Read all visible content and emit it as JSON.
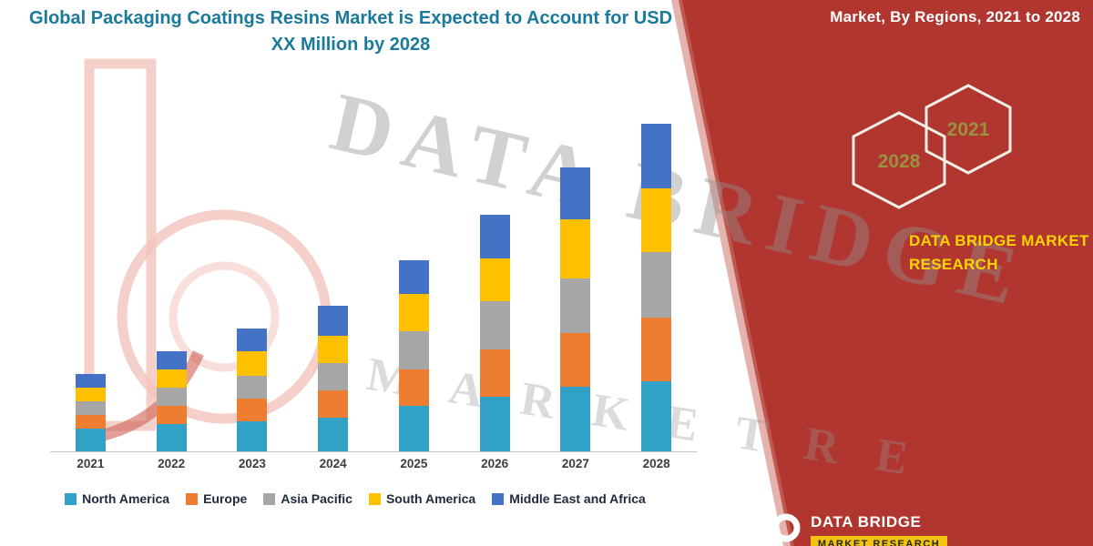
{
  "header": {
    "title": "Global Packaging Coatings Resins Market is Expected to Account for USD XX Million by 2028",
    "right_caption": "Market, By Regions, 2021 to 2028"
  },
  "side_panel": {
    "badge_back": "2028",
    "badge_front": "2021",
    "brand_line1": "DATA BRIDGE MARKET",
    "brand_line2": "RESEARCH"
  },
  "watermark": {
    "line1": "DATA BRIDGE",
    "line2": "MARKETRE"
  },
  "footer_logo": {
    "name": "DATA BRIDGE",
    "banner": "MARKET RESEARCH"
  },
  "colors": {
    "panel_red": "#B0362F",
    "title_teal": "#1A7A9C",
    "brand_yellow": "#FFD400",
    "hex_year_olive": "#99924A"
  },
  "chart_data": {
    "type": "bar",
    "stacked": true,
    "title": "Global Packaging Coatings Resins Market is Expected to Account for USD XX Million by 2028",
    "xlabel": "",
    "ylabel": "",
    "y_axis_shown": false,
    "grid": false,
    "legend_position": "bottom",
    "values_estimated_from_pixels": true,
    "categories": [
      "2021",
      "2022",
      "2023",
      "2024",
      "2025",
      "2026",
      "2027",
      "2028"
    ],
    "series": [
      {
        "name": "North America",
        "color": "#31A2C6",
        "values": [
          25,
          30,
          33,
          37,
          50,
          60,
          71,
          77
        ]
      },
      {
        "name": "Europe",
        "color": "#ED7D31",
        "values": [
          15,
          20,
          25,
          30,
          40,
          52,
          59,
          70
        ]
      },
      {
        "name": "Asia Pacific",
        "color": "#A6A6A6",
        "values": [
          15,
          20,
          25,
          30,
          42,
          53,
          60,
          72
        ]
      },
      {
        "name": "South America",
        "color": "#FFC000",
        "values": [
          15,
          20,
          27,
          30,
          41,
          47,
          65,
          70
        ]
      },
      {
        "name": "Middle East and Africa",
        "color": "#4472C4",
        "values": [
          15,
          20,
          25,
          33,
          37,
          48,
          57,
          71
        ]
      }
    ],
    "totals": [
      85,
      110,
      135,
      160,
      210,
      260,
      312,
      360
    ]
  }
}
